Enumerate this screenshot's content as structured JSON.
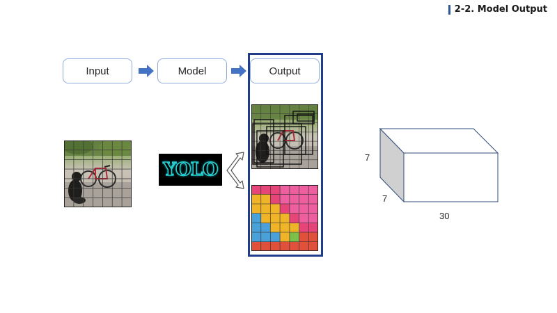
{
  "header": {
    "title": "2-2. Model  Output"
  },
  "pipeline": {
    "input_label": "Input",
    "model_label": "Model",
    "output_label": "Output"
  },
  "model": {
    "logo_text": "YOLO"
  },
  "tensor": {
    "height_label": "7",
    "depth_label": "7",
    "width_label": "30"
  },
  "colors": {
    "accent": "#2e5596",
    "box_border": "#8faadc",
    "output_frame": "#1f3d8a",
    "arrow": "#4472c4",
    "logo_glow": "#27d0d0"
  },
  "icons": {
    "arrow": "right-arrow-icon",
    "split": "split-arrow-icon"
  }
}
